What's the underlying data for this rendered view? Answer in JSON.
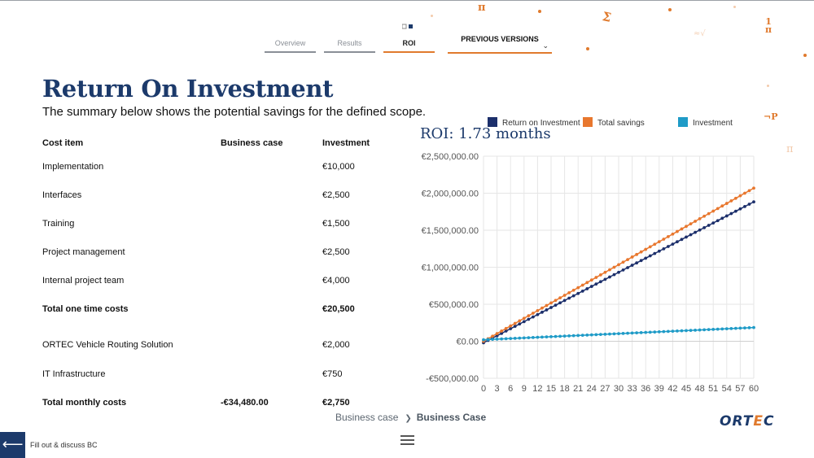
{
  "tabs": [
    {
      "label": "Overview",
      "active": false
    },
    {
      "label": "Results",
      "active": false
    },
    {
      "label": "ROI",
      "active": true
    }
  ],
  "previous_versions": {
    "label": "PREVIOUS VERSIONS",
    "icon": "chevron-down-icon"
  },
  "header": {
    "title": "Return On Investment",
    "subtitle": "The summary below shows the potential savings for the defined scope."
  },
  "table": {
    "headers": [
      "Cost item",
      "Business case",
      "Investment"
    ],
    "rows": [
      {
        "item": "Implementation",
        "business_case": "",
        "investment": "€10,000",
        "total": false
      },
      {
        "item": "Interfaces",
        "business_case": "",
        "investment": "€2,500",
        "total": false
      },
      {
        "item": "Training",
        "business_case": "",
        "investment": "€1,500",
        "total": false
      },
      {
        "item": "Project management",
        "business_case": "",
        "investment": "€2,500",
        "total": false
      },
      {
        "item": "Internal project team",
        "business_case": "",
        "investment": "€4,000",
        "total": false
      },
      {
        "item": "Total one time costs",
        "business_case": "",
        "investment": "€20,500",
        "total": true
      },
      {
        "item": "ORTEC Vehicle Routing Solution",
        "business_case": "",
        "investment": "€2,000",
        "total": false
      },
      {
        "item": "IT Infrastructure",
        "business_case": "",
        "investment": "€750",
        "total": false
      },
      {
        "item": "Total monthly costs",
        "business_case": "-€34,480.00",
        "investment": "€2,750",
        "total": true
      }
    ]
  },
  "roi_label": "ROI: 1.73 months",
  "chart_data": {
    "type": "line",
    "xlabel": "",
    "ylabel": "",
    "xlim": [
      0,
      60
    ],
    "ylim": [
      -500000,
      2500000
    ],
    "x_ticks": [
      0,
      3,
      6,
      9,
      12,
      15,
      18,
      21,
      24,
      27,
      30,
      33,
      36,
      39,
      42,
      45,
      48,
      51,
      54,
      57,
      60
    ],
    "y_ticks": [
      {
        "value": 2500000,
        "label": "€2,500,000.00"
      },
      {
        "value": 2000000,
        "label": "€2,000,000.00"
      },
      {
        "value": 1500000,
        "label": "€1,500,000.00"
      },
      {
        "value": 1000000,
        "label": "€1,000,000.00"
      },
      {
        "value": 500000,
        "label": "€500,000.00"
      },
      {
        "value": 0,
        "label": "€0.00"
      },
      {
        "value": -500000,
        "label": "-€500,000.00"
      }
    ],
    "grid": true,
    "legend_position": "top",
    "series": [
      {
        "name": "Return on Investment",
        "color": "#1c2f6b",
        "start": -20500,
        "slope": 31730
      },
      {
        "name": "Total savings",
        "color": "#e8772e",
        "start": 0,
        "slope": 34480
      },
      {
        "name": "Investment",
        "color": "#1f9bc7",
        "start": 20500,
        "slope": 2750
      }
    ]
  },
  "breadcrumb": {
    "parent": "Business case",
    "current": "Business Case"
  },
  "logo": {
    "text_before": "ORT",
    "accent": "E",
    "text_after": "C"
  },
  "footer": {
    "back_label": "Fill out & discuss BC"
  },
  "colors": {
    "navy": "#1c3a6b",
    "orange": "#e07a2d",
    "teal": "#1f9bc7"
  }
}
